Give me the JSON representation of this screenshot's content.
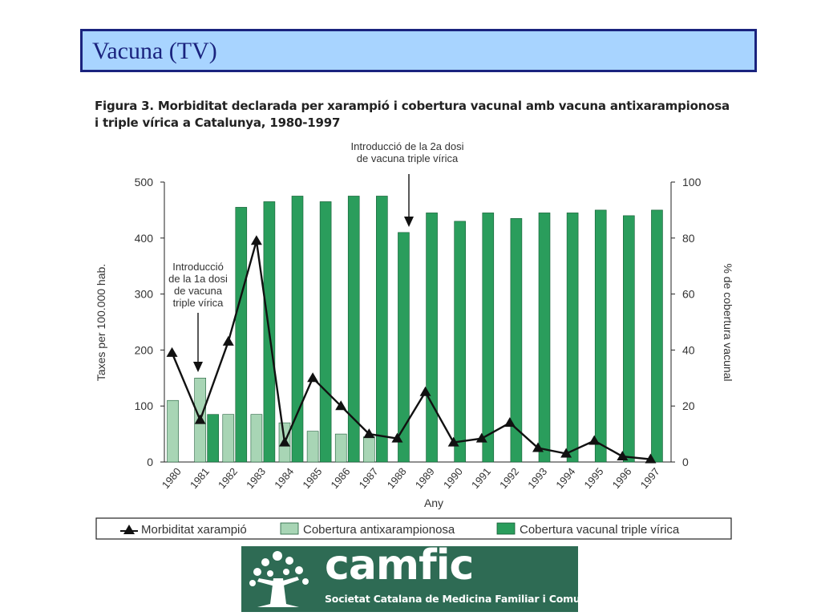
{
  "header": {
    "title": "Vacuna (TV)"
  },
  "figure": {
    "caption_line1": "Figura 3. Morbiditat declarada per xarampió i cobertura vacunal amb vacuna antixarampionosa",
    "caption_line2": "i triple vírica a Catalunya, 1980-1997"
  },
  "chart_data": {
    "type": "bar",
    "categories": [
      "1980",
      "1981",
      "1982",
      "1983",
      "1984",
      "1985",
      "1986",
      "1987",
      "1988",
      "1989",
      "1990",
      "1991",
      "1992",
      "1993",
      "1994",
      "1995",
      "1996",
      "1997"
    ],
    "series": [
      {
        "name": "Morbiditat xarampió",
        "kind": "line",
        "axis": "left",
        "marker": "triangle",
        "values": [
          195,
          75,
          215,
          395,
          35,
          150,
          100,
          50,
          42,
          125,
          35,
          42,
          70,
          25,
          15,
          38,
          10,
          5
        ]
      },
      {
        "name": "Cobertura antixarampionosa",
        "kind": "bar",
        "axis": "right",
        "values": [
          22,
          30,
          17,
          17,
          14,
          11,
          10,
          9,
          null,
          null,
          null,
          null,
          null,
          null,
          null,
          null,
          null,
          null
        ]
      },
      {
        "name": "Cobertura vacunal triple vírica",
        "kind": "bar",
        "axis": "right",
        "values": [
          null,
          17,
          91,
          93,
          95,
          93,
          95,
          95,
          82,
          89,
          86,
          89,
          87,
          89,
          89,
          90,
          88,
          90
        ]
      }
    ],
    "ylabel": "Taxes per 100.000 hab.",
    "ylabel_right": "% de cobertura vacunal",
    "xlabel": "Any",
    "ylim": [
      0,
      500
    ],
    "ylim_right": [
      0,
      100
    ],
    "yticks": [
      "0",
      "100",
      "200",
      "300",
      "400",
      "500"
    ],
    "yticks_right": [
      "0",
      "20",
      "40",
      "60",
      "80",
      "100"
    ],
    "annotations": [
      {
        "lines": [
          "Introducció",
          "de la 1a dosi",
          "de vacuna",
          "triple vírica"
        ],
        "year": "1981"
      },
      {
        "lines": [
          "Introducció de la 2a dosi",
          "de vacuna triple vírica"
        ],
        "year": "1988"
      }
    ],
    "legend_position": "bottom",
    "colors": {
      "light_bar": "#a8d5b5",
      "dark_bar": "#2a9d5c",
      "line": "#111111"
    }
  },
  "logo": {
    "word": "camfic",
    "subtitle": "Societat Catalana de Medicina Familiar i Comunitària",
    "background": "#2e6b54"
  }
}
